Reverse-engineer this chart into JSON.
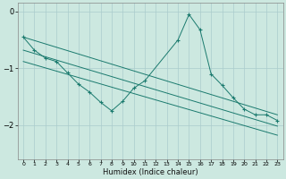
{
  "xlabel": "Humidex (Indice chaleur)",
  "bg_color": "#cce8e0",
  "grid_color": "#aacccc",
  "line_color": "#1a7a6e",
  "xlim": [
    -0.5,
    23.5
  ],
  "ylim": [
    -2.6,
    0.15
  ],
  "yticks": [
    0,
    -1,
    -2
  ],
  "xticks": [
    0,
    1,
    2,
    3,
    4,
    5,
    6,
    7,
    8,
    9,
    10,
    11,
    12,
    13,
    14,
    15,
    16,
    17,
    18,
    19,
    20,
    21,
    22,
    23
  ],
  "series": [
    {
      "x": [
        0,
        1,
        2,
        3,
        4,
        5,
        6,
        7,
        8,
        9,
        10,
        11,
        14,
        15,
        16,
        17,
        18,
        19,
        20,
        21,
        22,
        23
      ],
      "y": [
        -0.45,
        -0.68,
        -0.82,
        -0.88,
        -1.08,
        -1.28,
        -1.42,
        -1.6,
        -1.75,
        -1.58,
        -1.35,
        -1.22,
        -0.5,
        -0.05,
        -0.32,
        -1.1,
        -1.3,
        -1.52,
        -1.72,
        -1.82,
        -1.82,
        -1.92
      ]
    },
    {
      "x": [
        0,
        23
      ],
      "y": [
        -0.45,
        -1.82
      ]
    },
    {
      "x": [
        0,
        23
      ],
      "y": [
        -0.68,
        -2.02
      ]
    },
    {
      "x": [
        0,
        23
      ],
      "y": [
        -0.88,
        -2.18
      ]
    }
  ]
}
